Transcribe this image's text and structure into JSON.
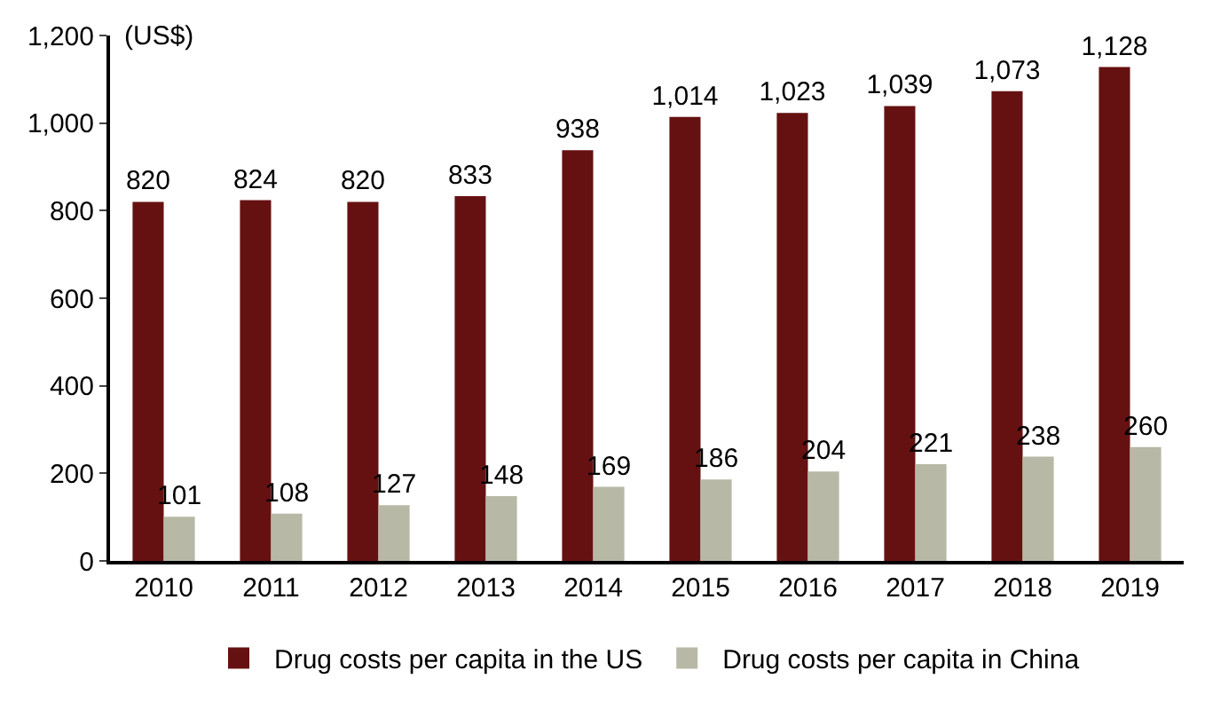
{
  "chart_data": {
    "type": "bar",
    "annotations": [
      "(US$)"
    ],
    "categories": [
      "2010",
      "2011",
      "2012",
      "2013",
      "2014",
      "2015",
      "2016",
      "2017",
      "2018",
      "2019"
    ],
    "series": [
      {
        "name": "Drug costs per capita in the US",
        "color": "#661111",
        "values": [
          820,
          824,
          820,
          833,
          938,
          1014,
          1023,
          1039,
          1073,
          1128
        ],
        "value_labels": [
          "820",
          "824",
          "820",
          "833",
          "938",
          "1,014",
          "1,023",
          "1,039",
          "1,073",
          "1,128"
        ]
      },
      {
        "name": "Drug costs per capita in China",
        "color": "#b8b8a6",
        "values": [
          101,
          108,
          127,
          148,
          169,
          186,
          204,
          221,
          238,
          260
        ],
        "value_labels": [
          "101",
          "108",
          "127",
          "148",
          "169",
          "186",
          "204",
          "221",
          "238",
          "260"
        ]
      }
    ],
    "ylim": [
      0,
      1200
    ],
    "yticks": [
      0,
      200,
      400,
      600,
      {
        "value": 800,
        "label": "800"
      },
      {
        "value": 1000,
        "label": "1,000"
      },
      {
        "value": 1200,
        "label": "1,200"
      }
    ],
    "legend": "bottom"
  }
}
